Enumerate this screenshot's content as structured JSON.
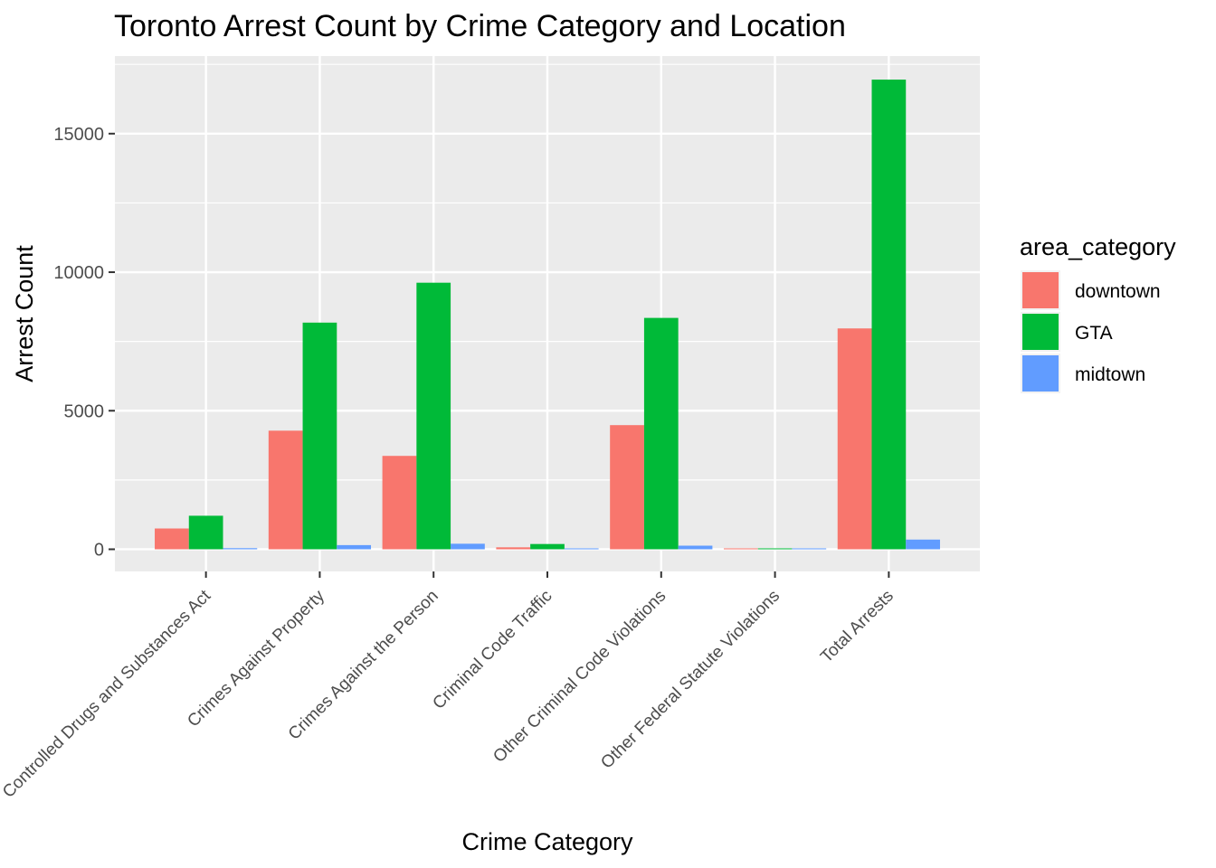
{
  "chart_data": {
    "type": "bar",
    "title": "Toronto Arrest Count by Crime Category and Location",
    "xlabel": "Crime Category",
    "ylabel": "Arrest Count",
    "categories": [
      "Controlled Drugs and Substances Act",
      "Crimes Against Property",
      "Crimes Against the Person",
      "Criminal Code Traffic",
      "Other Criminal Code Violations",
      "Other Federal Statute Violations",
      "Total Arrests"
    ],
    "series": [
      {
        "name": "downtown",
        "color": "#F8766D",
        "values": [
          750,
          4280,
          3370,
          70,
          4480,
          15,
          7970
        ]
      },
      {
        "name": "GTA",
        "color": "#00BA38",
        "values": [
          1210,
          8180,
          9620,
          190,
          8350,
          25,
          16950
        ]
      },
      {
        "name": "midtown",
        "color": "#619CFF",
        "values": [
          40,
          150,
          200,
          8,
          130,
          3,
          350
        ]
      }
    ],
    "ylim": [
      -800,
      17800
    ],
    "yticks": [
      0,
      5000,
      10000,
      15000
    ],
    "grid": true,
    "legend": {
      "title": "area_category",
      "position": "right"
    }
  }
}
